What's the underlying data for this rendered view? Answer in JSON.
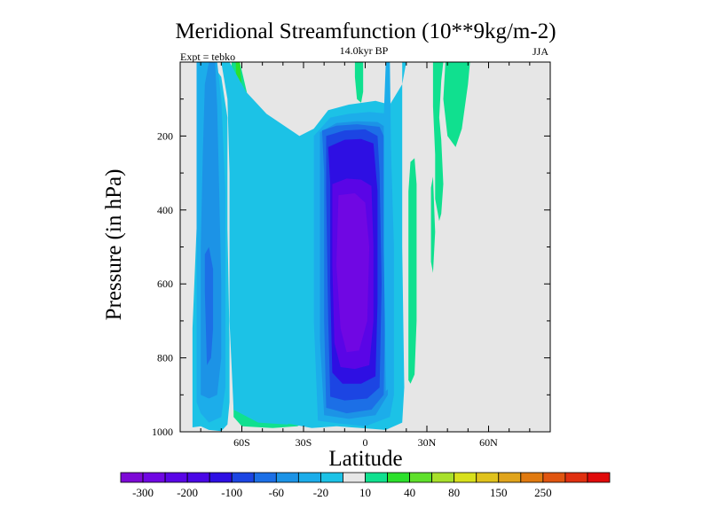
{
  "chart_data": {
    "type": "contour",
    "title": "Meridional Streamfunction (10**9kg/m-2)",
    "subtitle": "14.0kyr BP",
    "experiment_label": "Expt = tebko",
    "season": "JJA",
    "xlabel": "Latitude",
    "ylabel": "Pressure (in hPa)",
    "xlim": [
      -90,
      90
    ],
    "ylim": [
      0,
      1000
    ],
    "x_ticks": [
      {
        "value": -60,
        "label": "60S"
      },
      {
        "value": -30,
        "label": "30S"
      },
      {
        "value": 0,
        "label": "0"
      },
      {
        "value": 30,
        "label": "30N"
      },
      {
        "value": 60,
        "label": "60N"
      }
    ],
    "y_ticks": [
      {
        "value": 200,
        "label": "200"
      },
      {
        "value": 400,
        "label": "400"
      },
      {
        "value": 600,
        "label": "600"
      },
      {
        "value": 800,
        "label": "800"
      },
      {
        "value": 1000,
        "label": "1000"
      }
    ],
    "background_color": "#e6e6e6",
    "colorbar": {
      "colors": [
        "#7d09d6",
        "#7007e3",
        "#5a05e6",
        "#4a07e6",
        "#2e0fe3",
        "#1c45e3",
        "#1c6fe6",
        "#1c93e6",
        "#1cadea",
        "#1cc2e6",
        "#e6e6e6",
        "#10e08f",
        "#2ce02c",
        "#5fe02b",
        "#a8e02b",
        "#d8e01c",
        "#e0c21c",
        "#e0a41c",
        "#e07a10",
        "#e05510",
        "#e03010",
        "#e00a0a"
      ],
      "labels": [
        {
          "after_index": 0,
          "text": "-300"
        },
        {
          "after_index": 2,
          "text": "-200"
        },
        {
          "after_index": 4,
          "text": "-100"
        },
        {
          "after_index": 6,
          "text": "-60"
        },
        {
          "after_index": 8,
          "text": "-20"
        },
        {
          "after_index": 10,
          "text": "10"
        },
        {
          "after_index": 12,
          "text": "40"
        },
        {
          "after_index": 14,
          "text": "80"
        },
        {
          "after_index": 16,
          "text": "150"
        },
        {
          "after_index": 18,
          "text": "250"
        }
      ]
    },
    "regions": [
      {
        "name": "sh-polar-cell-outer",
        "color": "#1cc2e6",
        "points": [
          [
            -84,
            988
          ],
          [
            -84,
            720
          ],
          [
            -82,
            450
          ],
          [
            -81,
            150
          ],
          [
            -81,
            0
          ],
          [
            -78,
            0
          ],
          [
            -75,
            0
          ],
          [
            -70,
            40
          ],
          [
            -67,
            150
          ],
          [
            -67,
            450
          ],
          [
            -66,
            750
          ],
          [
            -66,
            920
          ],
          [
            -67,
            980
          ],
          [
            -70,
            998
          ],
          [
            -76,
            995
          ],
          [
            -80,
            985
          ]
        ]
      },
      {
        "name": "sh-polar-cell-mid",
        "color": "#1cadea",
        "points": [
          [
            -82,
            920
          ],
          [
            -82,
            500
          ],
          [
            -82,
            120
          ],
          [
            -82,
            0
          ],
          [
            -77,
            0
          ],
          [
            -72,
            0
          ],
          [
            -70,
            100
          ],
          [
            -68,
            350
          ],
          [
            -68,
            700
          ],
          [
            -68,
            880
          ],
          [
            -70,
            960
          ],
          [
            -76,
            975
          ],
          [
            -80,
            950
          ]
        ]
      },
      {
        "name": "sh-polar-cell-core",
        "color": "#1c93e6",
        "points": [
          [
            -80,
            900
          ],
          [
            -80,
            500
          ],
          [
            -79,
            250
          ],
          [
            -78,
            60
          ],
          [
            -76,
            0
          ],
          [
            -73,
            0
          ],
          [
            -72,
            120
          ],
          [
            -71,
            350
          ],
          [
            -70,
            600
          ],
          [
            -70,
            800
          ],
          [
            -72,
            900
          ],
          [
            -76,
            910
          ]
        ]
      },
      {
        "name": "sh-polar-cell-inner",
        "color": "#1c6fe6",
        "points": [
          [
            -77,
            820
          ],
          [
            -78,
            620
          ],
          [
            -78,
            520
          ],
          [
            -76,
            500
          ],
          [
            -74,
            560
          ],
          [
            -74,
            720
          ],
          [
            -75,
            800
          ]
        ]
      },
      {
        "name": "sh-ferrel-cell-outer",
        "color": "#10e08f",
        "points": [
          [
            -65,
            0
          ],
          [
            -61,
            0
          ],
          [
            -56,
            120
          ],
          [
            -48,
            250
          ],
          [
            -34,
            300
          ],
          [
            -25,
            420
          ],
          [
            -23,
            700
          ],
          [
            -23,
            900
          ],
          [
            -25,
            965
          ],
          [
            -33,
            985
          ],
          [
            -45,
            990
          ],
          [
            -60,
            985
          ],
          [
            -64,
            960
          ],
          [
            -64,
            700
          ],
          [
            -64,
            300
          ]
        ]
      },
      {
        "name": "sh-ferrel-cell-core",
        "color": "#2ce02c",
        "points": [
          [
            -63,
            0
          ],
          [
            -61,
            0
          ],
          [
            -58,
            220
          ],
          [
            -50,
            310
          ],
          [
            -38,
            350
          ],
          [
            -30,
            470
          ],
          [
            -28,
            800
          ],
          [
            -28,
            900
          ],
          [
            -33,
            950
          ],
          [
            -45,
            960
          ],
          [
            -57,
            955
          ],
          [
            -62,
            900
          ],
          [
            -62,
            500
          ],
          [
            -62,
            200
          ]
        ]
      },
      {
        "name": "hadley-cell-outer",
        "color": "#1cc2e6",
        "points": [
          [
            -70,
            0
          ],
          [
            -66,
            0
          ],
          [
            -58,
            80
          ],
          [
            -48,
            140
          ],
          [
            -32,
            200
          ],
          [
            -25,
            180
          ],
          [
            -18,
            130
          ],
          [
            -8,
            115
          ],
          [
            5,
            105
          ],
          [
            12,
            115
          ],
          [
            18,
            60
          ],
          [
            20,
            0
          ],
          [
            18,
            0
          ],
          [
            18,
            500
          ],
          [
            19,
            880
          ],
          [
            18,
            975
          ],
          [
            10,
            995
          ],
          [
            -2,
            990
          ],
          [
            -14,
            985
          ],
          [
            -26,
            990
          ],
          [
            -40,
            975
          ],
          [
            -50,
            945
          ],
          [
            -58,
            890
          ],
          [
            -62,
            800
          ],
          [
            -62,
            480
          ],
          [
            -62,
            260
          ],
          [
            -60,
            180
          ],
          [
            -46,
            200
          ],
          [
            -32,
            240
          ],
          [
            -26,
            280
          ],
          [
            -24,
            500
          ],
          [
            -25,
            900
          ],
          [
            -30,
            960
          ],
          [
            -38,
            980
          ],
          [
            -52,
            975
          ],
          [
            -64,
            940
          ],
          [
            -66,
            700
          ],
          [
            -66,
            300
          ],
          [
            -67,
            100
          ]
        ]
      },
      {
        "name": "hadley-cell-1",
        "color": "#1cadea",
        "points": [
          [
            -25,
            200
          ],
          [
            -17,
            150
          ],
          [
            -8,
            140
          ],
          [
            2,
            135
          ],
          [
            12,
            140
          ],
          [
            14,
            500
          ],
          [
            14,
            900
          ],
          [
            12,
            960
          ],
          [
            0,
            985
          ],
          [
            -12,
            978
          ],
          [
            -23,
            970
          ],
          [
            -25,
            700
          ],
          [
            -25,
            350
          ]
        ]
      },
      {
        "name": "hadley-cell-2",
        "color": "#1c93e6",
        "points": [
          [
            -22,
            190
          ],
          [
            -14,
            165
          ],
          [
            -4,
            160
          ],
          [
            6,
            162
          ],
          [
            11,
            180
          ],
          [
            11,
            550
          ],
          [
            11,
            900
          ],
          [
            5,
            955
          ],
          [
            -8,
            965
          ],
          [
            -20,
            955
          ],
          [
            -22,
            750
          ],
          [
            -22,
            350
          ]
        ]
      },
      {
        "name": "hadley-cell-3",
        "color": "#1c6fe6",
        "points": [
          [
            -21,
            185
          ],
          [
            -14,
            172
          ],
          [
            -4,
            168
          ],
          [
            7,
            175
          ],
          [
            9,
            200
          ],
          [
            10,
            550
          ],
          [
            9,
            900
          ],
          [
            3,
            940
          ],
          [
            -9,
            950
          ],
          [
            -19,
            935
          ],
          [
            -20,
            700
          ],
          [
            -20,
            300
          ]
        ]
      },
      {
        "name": "hadley-cell-4",
        "color": "#1c45e3",
        "points": [
          [
            -19,
            200
          ],
          [
            -10,
            185
          ],
          [
            0,
            182
          ],
          [
            6,
            200
          ],
          [
            7,
            300
          ],
          [
            8,
            600
          ],
          [
            7,
            880
          ],
          [
            1,
            910
          ],
          [
            -10,
            915
          ],
          [
            -17,
            905
          ],
          [
            -18,
            700
          ],
          [
            -19,
            350
          ]
        ]
      },
      {
        "name": "hadley-cell-5",
        "color": "#2e0fe3",
        "points": [
          [
            -18,
            230
          ],
          [
            -10,
            210
          ],
          [
            -2,
            208
          ],
          [
            4,
            220
          ],
          [
            6,
            350
          ],
          [
            6,
            650
          ],
          [
            5,
            850
          ],
          [
            -2,
            870
          ],
          [
            -11,
            870
          ],
          [
            -16,
            840
          ],
          [
            -17,
            600
          ],
          [
            -17,
            330
          ]
        ]
      },
      {
        "name": "hadley-cell-6",
        "color": "#5a05e6",
        "points": [
          [
            -16,
            330
          ],
          [
            -9,
            315
          ],
          [
            -2,
            318
          ],
          [
            3,
            335
          ],
          [
            4,
            500
          ],
          [
            4,
            700
          ],
          [
            2,
            820
          ],
          [
            -5,
            830
          ],
          [
            -12,
            825
          ],
          [
            -15,
            760
          ],
          [
            -16,
            550
          ]
        ]
      },
      {
        "name": "hadley-cell-core",
        "color": "#7007e3",
        "points": [
          [
            -13,
            360
          ],
          [
            -5,
            355
          ],
          [
            0,
            380
          ],
          [
            2,
            500
          ],
          [
            1,
            700
          ],
          [
            -3,
            780
          ],
          [
            -9,
            785
          ],
          [
            -12,
            720
          ],
          [
            -14,
            550
          ]
        ]
      },
      {
        "name": "nh-ferrel-outer",
        "color": "#1cadea",
        "points": [
          [
            10,
            0
          ],
          [
            12,
            0
          ],
          [
            13,
            400
          ],
          [
            13,
            800
          ],
          [
            12,
            880
          ],
          [
            10,
            890
          ],
          [
            9,
            500
          ],
          [
            9,
            150
          ]
        ]
      },
      {
        "name": "nh-subtropical-band",
        "color": "#10e08f",
        "points": [
          [
            21,
            860
          ],
          [
            21,
            600
          ],
          [
            21,
            350
          ],
          [
            22,
            270
          ],
          [
            24,
            260
          ],
          [
            25,
            330
          ],
          [
            25,
            700
          ],
          [
            24,
            845
          ],
          [
            22,
            870
          ]
        ]
      },
      {
        "name": "nh-midlat-band",
        "color": "#10e08f",
        "points": [
          [
            33,
            0
          ],
          [
            38,
            0
          ],
          [
            37,
            50
          ],
          [
            36,
            150
          ],
          [
            37,
            210
          ],
          [
            38,
            330
          ],
          [
            37,
            410
          ],
          [
            36,
            430
          ],
          [
            34,
            370
          ],
          [
            34,
            250
          ],
          [
            33,
            120
          ]
        ]
      },
      {
        "name": "nh-midlat-band-2",
        "color": "#10e08f",
        "points": [
          [
            39,
            0
          ],
          [
            51,
            0
          ],
          [
            50,
            60
          ],
          [
            47,
            180
          ],
          [
            44,
            230
          ],
          [
            40,
            200
          ],
          [
            38,
            100
          ]
        ]
      },
      {
        "name": "nh-thin-band",
        "color": "#10e08f",
        "points": [
          [
            32,
            340
          ],
          [
            33,
            310
          ],
          [
            34,
            460
          ],
          [
            33,
            570
          ],
          [
            32,
            540
          ]
        ]
      },
      {
        "name": "equatorial-top-band",
        "color": "#10e08f",
        "points": [
          [
            -5,
            0
          ],
          [
            -1,
            0
          ],
          [
            -1,
            80
          ],
          [
            -2,
            110
          ],
          [
            -4,
            100
          ],
          [
            -5,
            40
          ]
        ]
      }
    ]
  }
}
